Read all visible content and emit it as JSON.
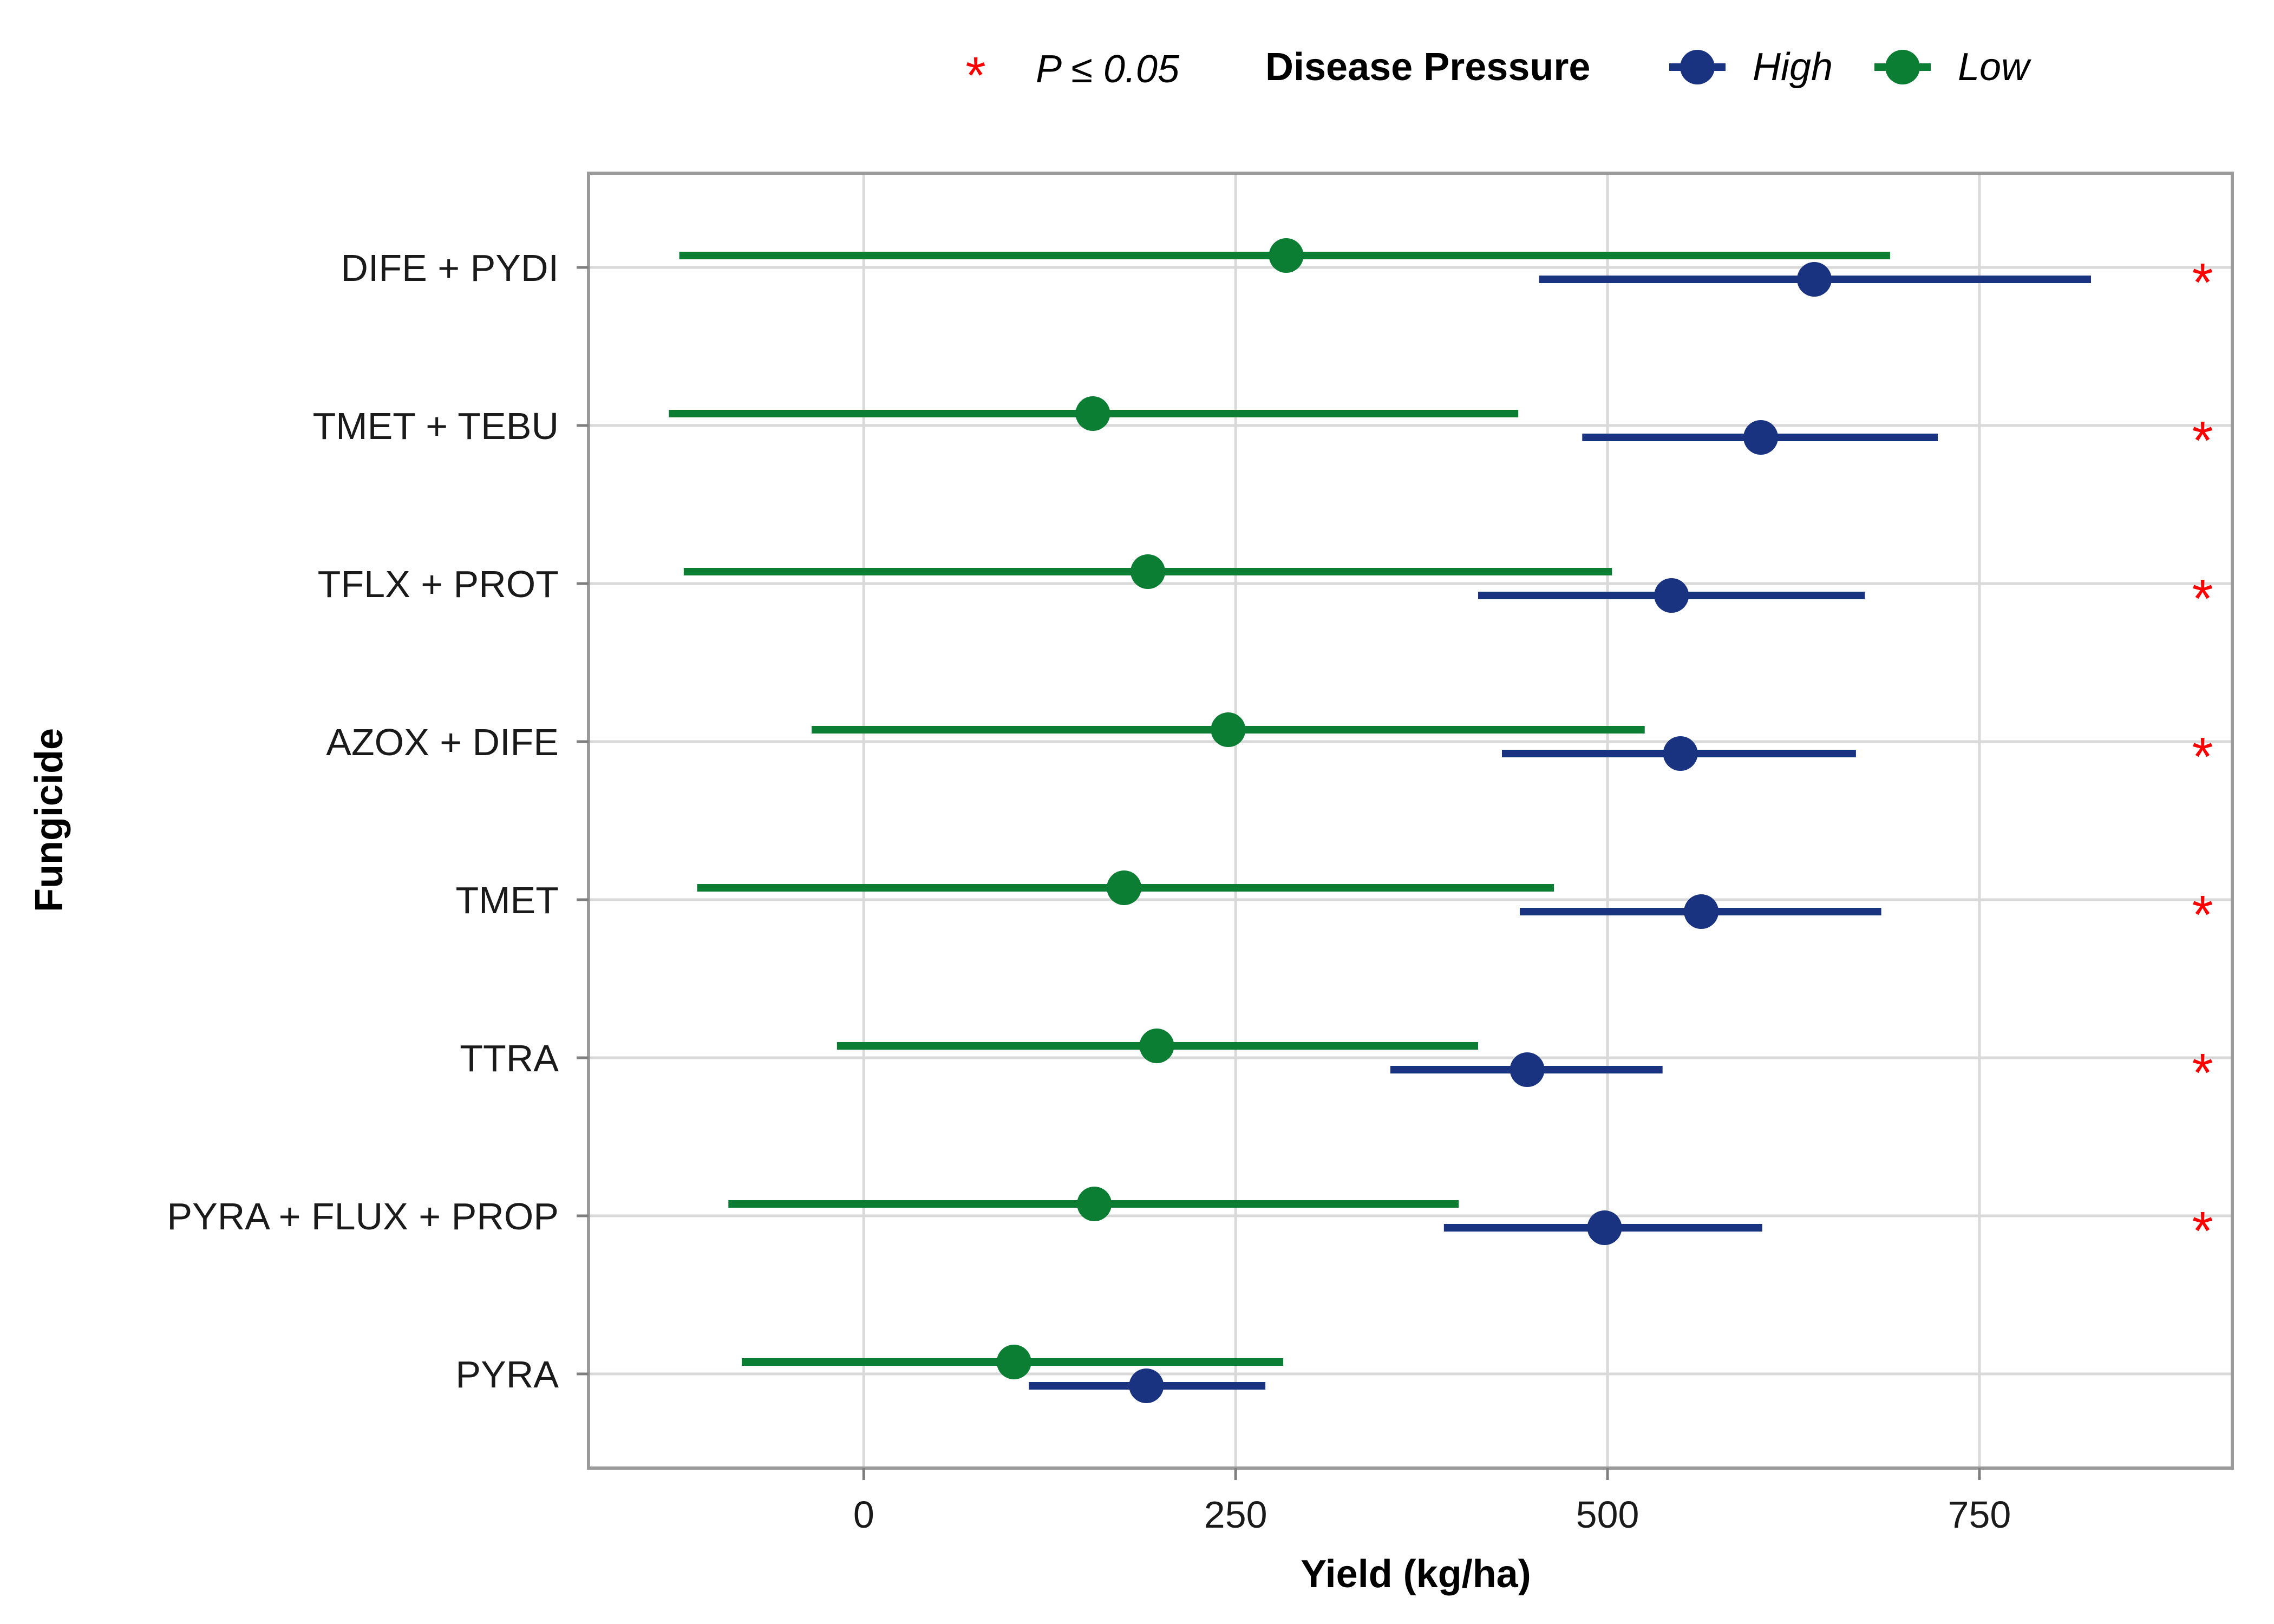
{
  "chart_data": {
    "type": "scatter",
    "subtype": "dot-with-error-bars",
    "xlabel": "Yield (kg/ha)",
    "ylabel": "Fungicide",
    "xlim": [
      -185,
      920
    ],
    "x_ticks": [
      0,
      250,
      500,
      750
    ],
    "x_tick_labels": [
      "0",
      "250",
      "500",
      "750"
    ],
    "grid": true,
    "legend_position": "top",
    "legend": {
      "sig_symbol": "*",
      "sig_label": "P ≤ 0.05",
      "title": "Disease Pressure"
    },
    "categories": [
      "PYRA",
      "PYRA + FLUX + PROP",
      "TTRA",
      "TMET",
      "AZOX + DIFE",
      "TFLX + PROT",
      "TMET + TEBU",
      "DIFE + PYDI"
    ],
    "series": [
      {
        "name": "High",
        "color": "#1a3380",
        "estimate": [
          190,
          498,
          446,
          563,
          549,
          543,
          603,
          639
        ],
        "lower": [
          111,
          390,
          354,
          441,
          429,
          413,
          483,
          454
        ],
        "upper": [
          270,
          604,
          537,
          684,
          667,
          673,
          722,
          825
        ]
      },
      {
        "name": "Low",
        "color": "#0b7e34",
        "estimate": [
          101,
          155,
          197,
          175,
          245,
          191,
          154,
          284
        ],
        "lower": [
          -82,
          -91,
          -18,
          -112,
          -35,
          -121,
          -131,
          -124
        ],
        "upper": [
          282,
          400,
          413,
          464,
          525,
          503,
          440,
          690
        ]
      }
    ],
    "significant": [
      false,
      true,
      true,
      true,
      true,
      true,
      true,
      true
    ],
    "significance_x": 900,
    "significance_symbol": "*",
    "significance_color": "#ff0000"
  }
}
